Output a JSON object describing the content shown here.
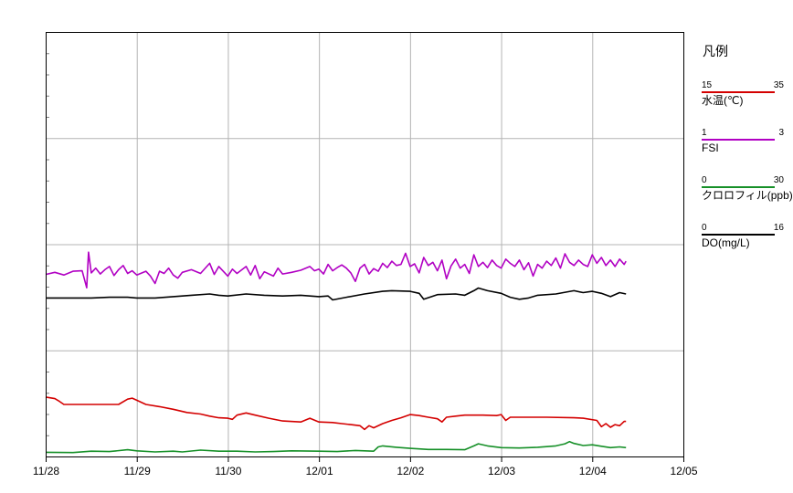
{
  "chart_data": {
    "type": "line",
    "x_ticks": [
      "11/28",
      "11/29",
      "11/30",
      "12/01",
      "12/02",
      "12/03",
      "12/04",
      "12/05"
    ],
    "xlim": [
      "11/28",
      "12/05"
    ],
    "grid": true,
    "legend_position": "right",
    "series": [
      {
        "name": "水温(℃)",
        "color": "#d40000",
        "range": [
          15,
          35
        ],
        "band": 3,
        "points": [
          [
            0.0,
            26.2
          ],
          [
            0.1,
            25.9
          ],
          [
            0.15,
            25.4
          ],
          [
            0.2,
            24.8
          ],
          [
            0.55,
            24.8
          ],
          [
            0.8,
            24.8
          ],
          [
            0.9,
            25.8
          ],
          [
            0.95,
            26.0
          ],
          [
            1.0,
            25.6
          ],
          [
            1.1,
            24.8
          ],
          [
            1.25,
            24.4
          ],
          [
            1.4,
            23.9
          ],
          [
            1.55,
            23.3
          ],
          [
            1.7,
            23.0
          ],
          [
            1.8,
            22.6
          ],
          [
            1.9,
            22.3
          ],
          [
            2.0,
            22.2
          ],
          [
            2.05,
            22.0
          ],
          [
            2.1,
            22.8
          ],
          [
            2.2,
            23.2
          ],
          [
            2.3,
            22.8
          ],
          [
            2.45,
            22.2
          ],
          [
            2.6,
            21.7
          ],
          [
            2.8,
            21.5
          ],
          [
            2.9,
            22.2
          ],
          [
            3.0,
            21.5
          ],
          [
            3.15,
            21.4
          ],
          [
            3.25,
            21.2
          ],
          [
            3.35,
            21.0
          ],
          [
            3.45,
            20.8
          ],
          [
            3.5,
            20.1
          ],
          [
            3.55,
            20.8
          ],
          [
            3.6,
            20.4
          ],
          [
            3.7,
            21.2
          ],
          [
            3.8,
            21.8
          ],
          [
            3.9,
            22.3
          ],
          [
            4.0,
            22.9
          ],
          [
            4.1,
            22.7
          ],
          [
            4.2,
            22.4
          ],
          [
            4.3,
            22.1
          ],
          [
            4.35,
            21.5
          ],
          [
            4.4,
            22.4
          ],
          [
            4.5,
            22.6
          ],
          [
            4.6,
            22.8
          ],
          [
            4.8,
            22.8
          ],
          [
            4.95,
            22.7
          ],
          [
            5.0,
            22.9
          ],
          [
            5.05,
            21.8
          ],
          [
            5.1,
            22.4
          ],
          [
            5.2,
            22.4
          ],
          [
            5.5,
            22.4
          ],
          [
            5.8,
            22.3
          ],
          [
            5.9,
            22.2
          ],
          [
            6.05,
            21.8
          ],
          [
            6.1,
            20.6
          ],
          [
            6.15,
            21.2
          ],
          [
            6.2,
            20.5
          ],
          [
            6.25,
            21.0
          ],
          [
            6.3,
            20.8
          ],
          [
            6.35,
            21.6
          ],
          [
            6.37,
            21.6
          ]
        ]
      },
      {
        "name": "FSI",
        "color": "#b100c3",
        "range": [
          1,
          3
        ],
        "band": 2,
        "points": [
          [
            0.0,
            2.43
          ],
          [
            0.1,
            2.47
          ],
          [
            0.2,
            2.42
          ],
          [
            0.3,
            2.49
          ],
          [
            0.4,
            2.5
          ],
          [
            0.45,
            2.18
          ],
          [
            0.47,
            2.85
          ],
          [
            0.5,
            2.46
          ],
          [
            0.55,
            2.55
          ],
          [
            0.6,
            2.44
          ],
          [
            0.65,
            2.52
          ],
          [
            0.7,
            2.58
          ],
          [
            0.75,
            2.41
          ],
          [
            0.8,
            2.52
          ],
          [
            0.85,
            2.6
          ],
          [
            0.9,
            2.45
          ],
          [
            0.95,
            2.5
          ],
          [
            1.0,
            2.42
          ],
          [
            1.1,
            2.49
          ],
          [
            1.15,
            2.4
          ],
          [
            1.2,
            2.26
          ],
          [
            1.25,
            2.49
          ],
          [
            1.3,
            2.45
          ],
          [
            1.35,
            2.55
          ],
          [
            1.4,
            2.42
          ],
          [
            1.45,
            2.36
          ],
          [
            1.5,
            2.47
          ],
          [
            1.6,
            2.52
          ],
          [
            1.7,
            2.45
          ],
          [
            1.8,
            2.64
          ],
          [
            1.85,
            2.43
          ],
          [
            1.9,
            2.58
          ],
          [
            2.0,
            2.4
          ],
          [
            2.05,
            2.53
          ],
          [
            2.1,
            2.45
          ],
          [
            2.2,
            2.58
          ],
          [
            2.25,
            2.42
          ],
          [
            2.3,
            2.6
          ],
          [
            2.35,
            2.35
          ],
          [
            2.4,
            2.48
          ],
          [
            2.5,
            2.4
          ],
          [
            2.55,
            2.55
          ],
          [
            2.6,
            2.44
          ],
          [
            2.7,
            2.47
          ],
          [
            2.8,
            2.51
          ],
          [
            2.9,
            2.58
          ],
          [
            2.95,
            2.5
          ],
          [
            3.0,
            2.53
          ],
          [
            3.05,
            2.44
          ],
          [
            3.1,
            2.62
          ],
          [
            3.15,
            2.5
          ],
          [
            3.2,
            2.56
          ],
          [
            3.25,
            2.61
          ],
          [
            3.3,
            2.55
          ],
          [
            3.35,
            2.46
          ],
          [
            3.4,
            2.3
          ],
          [
            3.45,
            2.55
          ],
          [
            3.5,
            2.62
          ],
          [
            3.55,
            2.44
          ],
          [
            3.6,
            2.54
          ],
          [
            3.65,
            2.49
          ],
          [
            3.7,
            2.64
          ],
          [
            3.75,
            2.56
          ],
          [
            3.8,
            2.68
          ],
          [
            3.85,
            2.6
          ],
          [
            3.9,
            2.62
          ],
          [
            3.95,
            2.83
          ],
          [
            4.0,
            2.58
          ],
          [
            4.05,
            2.63
          ],
          [
            4.1,
            2.46
          ],
          [
            4.15,
            2.75
          ],
          [
            4.2,
            2.6
          ],
          [
            4.25,
            2.66
          ],
          [
            4.3,
            2.5
          ],
          [
            4.35,
            2.7
          ],
          [
            4.4,
            2.35
          ],
          [
            4.45,
            2.59
          ],
          [
            4.5,
            2.72
          ],
          [
            4.55,
            2.55
          ],
          [
            4.6,
            2.62
          ],
          [
            4.65,
            2.45
          ],
          [
            4.7,
            2.8
          ],
          [
            4.75,
            2.58
          ],
          [
            4.8,
            2.66
          ],
          [
            4.85,
            2.56
          ],
          [
            4.9,
            2.7
          ],
          [
            4.95,
            2.6
          ],
          [
            5.0,
            2.55
          ],
          [
            5.05,
            2.72
          ],
          [
            5.1,
            2.64
          ],
          [
            5.15,
            2.58
          ],
          [
            5.2,
            2.7
          ],
          [
            5.25,
            2.52
          ],
          [
            5.3,
            2.65
          ],
          [
            5.35,
            2.4
          ],
          [
            5.4,
            2.62
          ],
          [
            5.45,
            2.55
          ],
          [
            5.5,
            2.68
          ],
          [
            5.55,
            2.6
          ],
          [
            5.6,
            2.74
          ],
          [
            5.65,
            2.55
          ],
          [
            5.7,
            2.82
          ],
          [
            5.75,
            2.66
          ],
          [
            5.8,
            2.6
          ],
          [
            5.85,
            2.7
          ],
          [
            5.9,
            2.62
          ],
          [
            5.95,
            2.58
          ],
          [
            6.0,
            2.8
          ],
          [
            6.05,
            2.64
          ],
          [
            6.1,
            2.75
          ],
          [
            6.15,
            2.6
          ],
          [
            6.2,
            2.7
          ],
          [
            6.25,
            2.58
          ],
          [
            6.3,
            2.72
          ],
          [
            6.35,
            2.62
          ],
          [
            6.37,
            2.68
          ]
        ]
      },
      {
        "name": "クロロフィル(ppb)",
        "color": "#169028",
        "range": [
          0,
          30
        ],
        "band": 3,
        "points": [
          [
            0.0,
            1.2
          ],
          [
            0.3,
            1.1
          ],
          [
            0.5,
            1.5
          ],
          [
            0.7,
            1.4
          ],
          [
            0.9,
            1.9
          ],
          [
            1.0,
            1.6
          ],
          [
            1.2,
            1.3
          ],
          [
            1.4,
            1.5
          ],
          [
            1.5,
            1.3
          ],
          [
            1.7,
            1.8
          ],
          [
            1.9,
            1.5
          ],
          [
            2.1,
            1.5
          ],
          [
            2.3,
            1.3
          ],
          [
            2.5,
            1.4
          ],
          [
            2.7,
            1.6
          ],
          [
            3.0,
            1.5
          ],
          [
            3.2,
            1.4
          ],
          [
            3.4,
            1.7
          ],
          [
            3.6,
            1.5
          ],
          [
            3.65,
            2.7
          ],
          [
            3.7,
            3.0
          ],
          [
            3.85,
            2.6
          ],
          [
            4.0,
            2.3
          ],
          [
            4.2,
            2.0
          ],
          [
            4.4,
            2.0
          ],
          [
            4.6,
            1.9
          ],
          [
            4.7,
            3.0
          ],
          [
            4.75,
            3.6
          ],
          [
            4.85,
            3.0
          ],
          [
            5.0,
            2.5
          ],
          [
            5.2,
            2.4
          ],
          [
            5.4,
            2.6
          ],
          [
            5.6,
            3.0
          ],
          [
            5.7,
            3.6
          ],
          [
            5.75,
            4.2
          ],
          [
            5.8,
            3.7
          ],
          [
            5.9,
            3.1
          ],
          [
            6.0,
            3.3
          ],
          [
            6.1,
            2.9
          ],
          [
            6.2,
            2.5
          ],
          [
            6.3,
            2.7
          ],
          [
            6.37,
            2.5
          ]
        ]
      },
      {
        "name": "DO(mg/L)",
        "color": "#000000",
        "range": [
          0,
          16
        ],
        "band": 2,
        "points": [
          [
            0.0,
            7.9
          ],
          [
            0.3,
            7.9
          ],
          [
            0.5,
            7.9
          ],
          [
            0.7,
            8.0
          ],
          [
            0.9,
            8.0
          ],
          [
            1.0,
            7.9
          ],
          [
            1.2,
            7.9
          ],
          [
            1.4,
            8.1
          ],
          [
            1.6,
            8.3
          ],
          [
            1.8,
            8.5
          ],
          [
            1.9,
            8.3
          ],
          [
            2.0,
            8.2
          ],
          [
            2.2,
            8.5
          ],
          [
            2.4,
            8.3
          ],
          [
            2.6,
            8.2
          ],
          [
            2.8,
            8.3
          ],
          [
            3.0,
            8.1
          ],
          [
            3.1,
            8.2
          ],
          [
            3.15,
            7.6
          ],
          [
            3.3,
            8.0
          ],
          [
            3.5,
            8.5
          ],
          [
            3.7,
            8.9
          ],
          [
            3.8,
            9.0
          ],
          [
            4.0,
            8.9
          ],
          [
            4.1,
            8.6
          ],
          [
            4.15,
            7.7
          ],
          [
            4.3,
            8.4
          ],
          [
            4.5,
            8.5
          ],
          [
            4.6,
            8.3
          ],
          [
            4.7,
            9.0
          ],
          [
            4.75,
            9.4
          ],
          [
            4.85,
            9.0
          ],
          [
            5.0,
            8.6
          ],
          [
            5.1,
            8.0
          ],
          [
            5.2,
            7.7
          ],
          [
            5.3,
            7.9
          ],
          [
            5.4,
            8.3
          ],
          [
            5.6,
            8.5
          ],
          [
            5.8,
            9.0
          ],
          [
            5.9,
            8.7
          ],
          [
            6.0,
            8.9
          ],
          [
            6.1,
            8.6
          ],
          [
            6.2,
            8.1
          ],
          [
            6.3,
            8.7
          ],
          [
            6.37,
            8.5
          ]
        ]
      }
    ]
  },
  "legend": {
    "title": "凡例",
    "items": [
      {
        "min": "15",
        "max": "35",
        "label": "水温(℃)",
        "color": "#d40000"
      },
      {
        "min": "1",
        "max": "3",
        "label": "FSI",
        "color": "#b100c3"
      },
      {
        "min": "0",
        "max": "30",
        "label": "クロロフィル(ppb)",
        "color": "#169028"
      },
      {
        "min": "0",
        "max": "16",
        "label": "DO(mg/L)",
        "color": "#000000"
      }
    ]
  }
}
